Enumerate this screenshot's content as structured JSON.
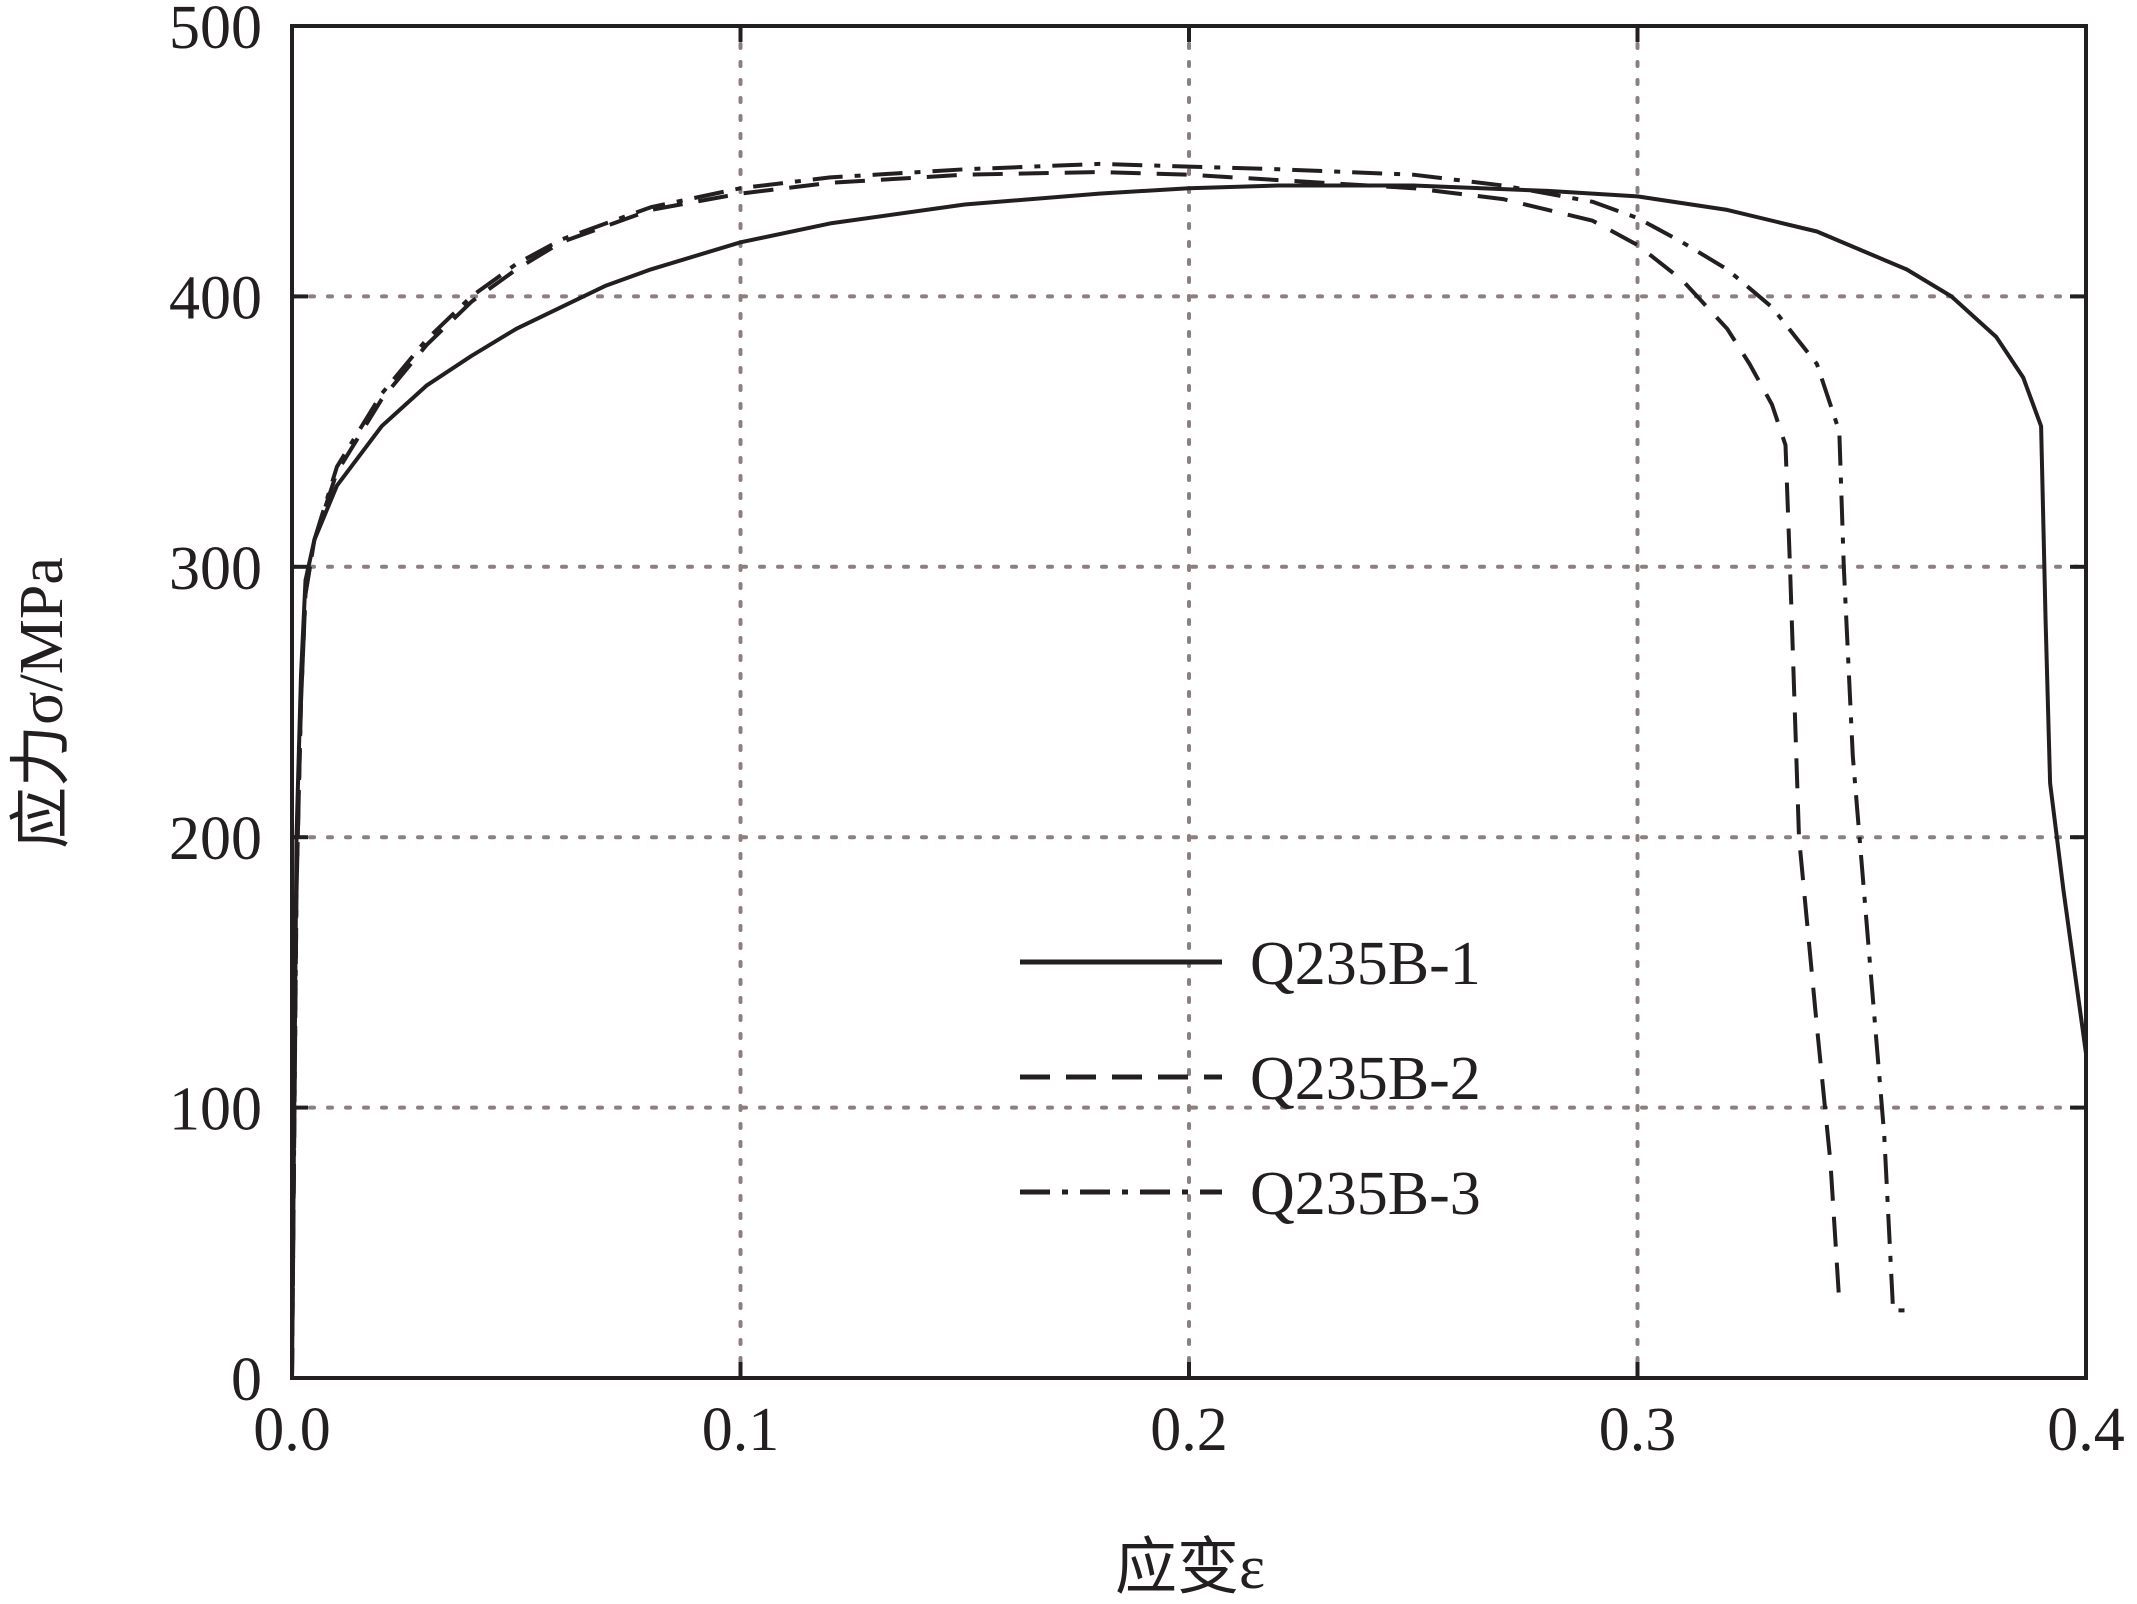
{
  "chart_data": {
    "type": "line",
    "xlabel": "应变ε",
    "ylabel": "应力σ/MPa",
    "xlim": [
      0.0,
      0.4
    ],
    "ylim": [
      0,
      500
    ],
    "x_ticks": [
      "0.0",
      "0.1",
      "0.2",
      "0.3",
      "0.4"
    ],
    "y_ticks": [
      "0",
      "100",
      "200",
      "300",
      "400",
      "500"
    ],
    "grid": true,
    "legend_position": "lower-center",
    "line_color": "#231f20",
    "grid_color": "#8c7f7f",
    "series": [
      {
        "name": "Q235B-1",
        "style": "solid",
        "x": [
          0.0,
          0.001,
          0.002,
          0.003,
          0.005,
          0.01,
          0.02,
          0.03,
          0.04,
          0.05,
          0.06,
          0.07,
          0.08,
          0.1,
          0.12,
          0.15,
          0.18,
          0.2,
          0.22,
          0.25,
          0.28,
          0.3,
          0.32,
          0.34,
          0.36,
          0.37,
          0.38,
          0.386,
          0.39,
          0.391,
          0.392,
          0.395,
          0.4
        ],
        "y": [
          0,
          200,
          260,
          295,
          310,
          330,
          352,
          367,
          378,
          388,
          396,
          404,
          410,
          420,
          427,
          434,
          438,
          440,
          441,
          441,
          439,
          437,
          432,
          424,
          410,
          400,
          385,
          370,
          352,
          280,
          220,
          180,
          120
        ]
      },
      {
        "name": "Q235B-2",
        "style": "dashed",
        "x": [
          0.0,
          0.001,
          0.002,
          0.003,
          0.005,
          0.01,
          0.02,
          0.03,
          0.04,
          0.05,
          0.06,
          0.08,
          0.1,
          0.12,
          0.15,
          0.18,
          0.2,
          0.22,
          0.25,
          0.27,
          0.29,
          0.3,
          0.31,
          0.32,
          0.325,
          0.33,
          0.333,
          0.334,
          0.336,
          0.34,
          0.343,
          0.345
        ],
        "y": [
          0,
          180,
          250,
          290,
          310,
          335,
          362,
          382,
          398,
          410,
          420,
          432,
          438,
          442,
          445,
          446,
          445,
          443,
          440,
          436,
          428,
          419,
          406,
          388,
          375,
          360,
          345,
          300,
          200,
          130,
          80,
          28
        ]
      },
      {
        "name": "Q235B-3",
        "style": "dashdot",
        "x": [
          0.0,
          0.001,
          0.002,
          0.003,
          0.005,
          0.01,
          0.02,
          0.03,
          0.04,
          0.05,
          0.06,
          0.08,
          0.1,
          0.12,
          0.15,
          0.18,
          0.2,
          0.22,
          0.25,
          0.27,
          0.29,
          0.3,
          0.31,
          0.32,
          0.33,
          0.34,
          0.343,
          0.345,
          0.346,
          0.348,
          0.352,
          0.355,
          0.357,
          0.36
        ],
        "y": [
          0,
          180,
          250,
          290,
          310,
          337,
          364,
          384,
          400,
          412,
          421,
          433,
          440,
          444,
          447,
          449,
          448,
          447,
          445,
          441,
          435,
          429,
          420,
          410,
          396,
          375,
          360,
          350,
          300,
          230,
          150,
          90,
          25,
          25
        ]
      }
    ]
  }
}
